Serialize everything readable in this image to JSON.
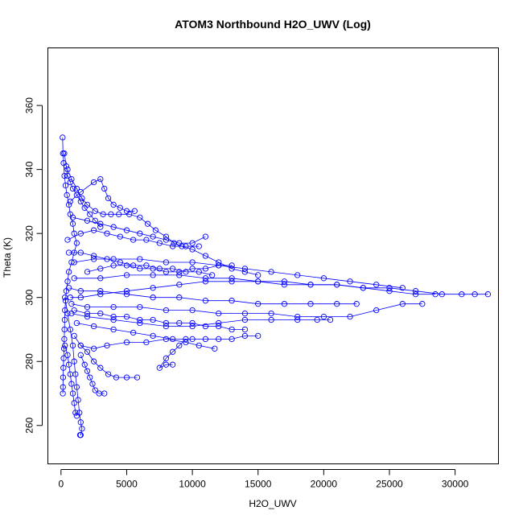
{
  "chart_data": {
    "type": "scatter",
    "title": "ATOM3 Northbound H2O_UWV (Log)",
    "xlabel": "H2O_UWV",
    "ylabel": "Theta (K)",
    "xlim": [
      -1000,
      33300
    ],
    "ylim": [
      248,
      378
    ],
    "xticks": [
      0,
      5000,
      10000,
      15000,
      20000,
      25000,
      30000
    ],
    "yticks": [
      260,
      280,
      300,
      320,
      340,
      360
    ],
    "grid": false,
    "legend": "none",
    "marker": "open-circle",
    "connected": true,
    "color": "#0000ff",
    "series": [
      {
        "points": [
          [
            120,
            350
          ],
          [
            150,
            345
          ],
          [
            200,
            342
          ],
          [
            260,
            338
          ],
          [
            350,
            335
          ],
          [
            450,
            332
          ],
          [
            600,
            329
          ],
          [
            700,
            326
          ],
          [
            900,
            323
          ],
          [
            1000,
            320
          ],
          [
            1200,
            317
          ],
          [
            1000,
            314
          ],
          [
            800,
            311
          ],
          [
            600,
            308
          ],
          [
            500,
            305
          ],
          [
            400,
            302
          ],
          [
            350,
            299
          ],
          [
            300,
            296
          ],
          [
            280,
            293
          ],
          [
            260,
            290
          ],
          [
            250,
            287
          ],
          [
            230,
            284
          ],
          [
            200,
            281
          ],
          [
            180,
            278
          ],
          [
            160,
            275
          ],
          [
            150,
            272
          ],
          [
            140,
            270
          ]
        ]
      },
      {
        "points": [
          [
            500,
            340
          ],
          [
            800,
            337
          ],
          [
            1200,
            334
          ],
          [
            1600,
            331
          ],
          [
            2000,
            329
          ],
          [
            2600,
            327
          ],
          [
            3200,
            326
          ],
          [
            3800,
            326
          ],
          [
            4400,
            326
          ],
          [
            5200,
            326
          ],
          [
            6000,
            325
          ],
          [
            6600,
            323
          ],
          [
            7200,
            321
          ],
          [
            8000,
            319
          ],
          [
            8600,
            317
          ],
          [
            9200,
            316
          ],
          [
            10000,
            315
          ],
          [
            11000,
            313
          ],
          [
            12000,
            311
          ],
          [
            13000,
            309
          ],
          [
            14000,
            308
          ],
          [
            15000,
            307
          ]
        ]
      },
      {
        "points": [
          [
            700,
            300
          ],
          [
            1500,
            300
          ],
          [
            3000,
            301
          ],
          [
            5000,
            302
          ],
          [
            7000,
            303
          ],
          [
            9000,
            304
          ],
          [
            11000,
            305
          ],
          [
            13000,
            305
          ],
          [
            15000,
            305
          ],
          [
            17000,
            304
          ],
          [
            19000,
            304
          ],
          [
            21000,
            304
          ],
          [
            23000,
            303
          ],
          [
            25000,
            303
          ],
          [
            27000,
            302
          ],
          [
            29000,
            301
          ],
          [
            30500,
            301
          ],
          [
            31500,
            301
          ],
          [
            32500,
            301
          ]
        ]
      },
      {
        "points": [
          [
            1000,
            306
          ],
          [
            3000,
            306
          ],
          [
            5000,
            307
          ],
          [
            7000,
            307
          ],
          [
            9000,
            307
          ],
          [
            11000,
            306
          ],
          [
            13000,
            306
          ],
          [
            15000,
            305
          ],
          [
            17000,
            305
          ],
          [
            19000,
            304
          ],
          [
            21000,
            304
          ],
          [
            23000,
            303
          ],
          [
            25000,
            302
          ],
          [
            27000,
            301
          ],
          [
            28500,
            301
          ]
        ]
      },
      {
        "points": [
          [
            1000,
            311
          ],
          [
            2500,
            312
          ],
          [
            4000,
            312
          ],
          [
            6000,
            312
          ],
          [
            8000,
            311
          ],
          [
            10000,
            311
          ],
          [
            12000,
            310
          ],
          [
            14000,
            309
          ],
          [
            16000,
            308
          ],
          [
            18000,
            307
          ],
          [
            20000,
            306
          ],
          [
            22000,
            305
          ],
          [
            24000,
            304
          ],
          [
            26000,
            303
          ]
        ]
      },
      {
        "points": [
          [
            800,
            298
          ],
          [
            2000,
            297
          ],
          [
            4000,
            297
          ],
          [
            6000,
            297
          ],
          [
            8000,
            296
          ],
          [
            10000,
            296
          ],
          [
            12000,
            295
          ],
          [
            14000,
            295
          ],
          [
            16000,
            295
          ],
          [
            18000,
            294
          ],
          [
            20000,
            294
          ],
          [
            22000,
            294
          ],
          [
            24000,
            296
          ],
          [
            26000,
            298
          ],
          [
            27500,
            298
          ]
        ]
      },
      {
        "points": [
          [
            800,
            295
          ],
          [
            2000,
            294
          ],
          [
            4000,
            293
          ],
          [
            6000,
            292
          ],
          [
            8000,
            291
          ],
          [
            10000,
            291
          ],
          [
            12000,
            292
          ],
          [
            14000,
            293
          ],
          [
            16000,
            293
          ],
          [
            18000,
            293
          ],
          [
            19500,
            293
          ],
          [
            20500,
            293
          ]
        ]
      },
      {
        "points": [
          [
            1200,
            292
          ],
          [
            2500,
            291
          ],
          [
            4000,
            290
          ],
          [
            5500,
            289
          ],
          [
            7000,
            288
          ],
          [
            8500,
            287
          ],
          [
            10000,
            287
          ],
          [
            11000,
            287
          ],
          [
            12000,
            287
          ],
          [
            13000,
            287
          ],
          [
            14000,
            288
          ],
          [
            15000,
            288
          ]
        ]
      },
      {
        "points": [
          [
            1500,
            285
          ],
          [
            2500,
            284
          ],
          [
            3500,
            285
          ],
          [
            5000,
            286
          ],
          [
            6500,
            286
          ],
          [
            8000,
            287
          ],
          [
            9500,
            286
          ],
          [
            10500,
            285
          ],
          [
            11700,
            284
          ]
        ]
      },
      {
        "points": [
          [
            1000,
            288
          ],
          [
            1500,
            285
          ],
          [
            2000,
            283
          ],
          [
            2500,
            280
          ],
          [
            3000,
            278
          ],
          [
            3600,
            276
          ],
          [
            4200,
            275
          ],
          [
            5000,
            275
          ],
          [
            5800,
            275
          ]
        ]
      },
      {
        "points": [
          [
            8500,
            279
          ],
          [
            8000,
            279
          ],
          [
            7500,
            278
          ],
          [
            8000,
            281
          ],
          [
            8500,
            283
          ],
          [
            9000,
            285
          ],
          [
            9500,
            287
          ]
        ]
      },
      {
        "points": [
          [
            300,
            300
          ],
          [
            500,
            295
          ],
          [
            700,
            290
          ],
          [
            900,
            285
          ],
          [
            1000,
            280
          ],
          [
            1100,
            276
          ],
          [
            1200,
            272
          ],
          [
            1300,
            268
          ],
          [
            1400,
            264
          ],
          [
            1500,
            261
          ],
          [
            1600,
            259
          ],
          [
            1500,
            257
          ],
          [
            1450,
            257
          ]
        ]
      },
      {
        "points": [
          [
            1500,
            282
          ],
          [
            1800,
            279
          ],
          [
            2000,
            277
          ],
          [
            2200,
            275
          ],
          [
            2400,
            273
          ],
          [
            2600,
            271
          ],
          [
            2900,
            270
          ],
          [
            3300,
            270
          ]
        ]
      },
      {
        "points": [
          [
            700,
            330
          ],
          [
            1500,
            333
          ],
          [
            2500,
            336
          ],
          [
            3000,
            337
          ],
          [
            3300,
            334
          ],
          [
            3600,
            331
          ],
          [
            4000,
            329
          ],
          [
            4500,
            328
          ],
          [
            5000,
            327
          ],
          [
            5600,
            327
          ]
        ]
      },
      {
        "points": [
          [
            500,
            318
          ],
          [
            1500,
            320
          ],
          [
            2500,
            321
          ],
          [
            3500,
            320
          ],
          [
            4500,
            319
          ],
          [
            5500,
            318
          ],
          [
            6500,
            318
          ],
          [
            7500,
            317
          ],
          [
            8500,
            316
          ],
          [
            9500,
            316
          ],
          [
            10500,
            316
          ]
        ]
      },
      {
        "points": [
          [
            600,
            314
          ],
          [
            1500,
            314
          ],
          [
            2500,
            313
          ],
          [
            3500,
            312
          ],
          [
            4500,
            311
          ],
          [
            5500,
            310
          ],
          [
            6500,
            310
          ],
          [
            7500,
            309
          ],
          [
            8500,
            309
          ],
          [
            9500,
            308
          ],
          [
            10500,
            308
          ],
          [
            11500,
            307
          ]
        ]
      },
      {
        "points": [
          [
            900,
            325
          ],
          [
            2000,
            324
          ],
          [
            3000,
            323
          ],
          [
            4000,
            322
          ],
          [
            5000,
            321
          ],
          [
            6000,
            320
          ],
          [
            7000,
            319
          ],
          [
            8000,
            318
          ],
          [
            9000,
            317
          ],
          [
            10000,
            317
          ],
          [
            11000,
            319
          ]
        ]
      },
      {
        "points": [
          [
            600,
            303
          ],
          [
            1500,
            302
          ],
          [
            3000,
            302
          ],
          [
            5000,
            301
          ],
          [
            7000,
            300
          ],
          [
            9000,
            300
          ],
          [
            11000,
            299
          ],
          [
            13000,
            299
          ],
          [
            15000,
            298
          ],
          [
            17000,
            298
          ],
          [
            19000,
            298
          ],
          [
            21000,
            298
          ],
          [
            22500,
            298
          ]
        ]
      },
      {
        "points": [
          [
            250,
            345
          ],
          [
            400,
            341
          ],
          [
            500,
            338
          ],
          [
            700,
            336
          ],
          [
            900,
            334
          ],
          [
            1200,
            332
          ],
          [
            1500,
            330
          ],
          [
            1800,
            328
          ],
          [
            2200,
            326
          ],
          [
            2600,
            324
          ],
          [
            3000,
            322
          ]
        ]
      },
      {
        "points": [
          [
            300,
            285
          ],
          [
            500,
            282
          ],
          [
            600,
            279
          ],
          [
            700,
            276
          ],
          [
            800,
            273
          ],
          [
            900,
            270
          ],
          [
            1000,
            267
          ],
          [
            1100,
            264
          ],
          [
            1200,
            263
          ]
        ]
      },
      {
        "points": [
          [
            2000,
            308
          ],
          [
            3000,
            309
          ],
          [
            4000,
            310
          ],
          [
            5000,
            310
          ],
          [
            6000,
            309
          ],
          [
            7000,
            309
          ],
          [
            8000,
            308
          ],
          [
            9000,
            308
          ],
          [
            10000,
            309
          ],
          [
            11000,
            309
          ],
          [
            12000,
            310
          ],
          [
            13000,
            310
          ]
        ]
      },
      {
        "points": [
          [
            1000,
            296
          ],
          [
            2000,
            295
          ],
          [
            3000,
            295
          ],
          [
            4000,
            294
          ],
          [
            5000,
            294
          ],
          [
            6000,
            293
          ],
          [
            7000,
            293
          ],
          [
            8000,
            292
          ],
          [
            9000,
            292
          ],
          [
            10000,
            292
          ],
          [
            11000,
            291
          ],
          [
            12000,
            291
          ],
          [
            13000,
            290
          ],
          [
            14000,
            290
          ]
        ]
      }
    ]
  }
}
